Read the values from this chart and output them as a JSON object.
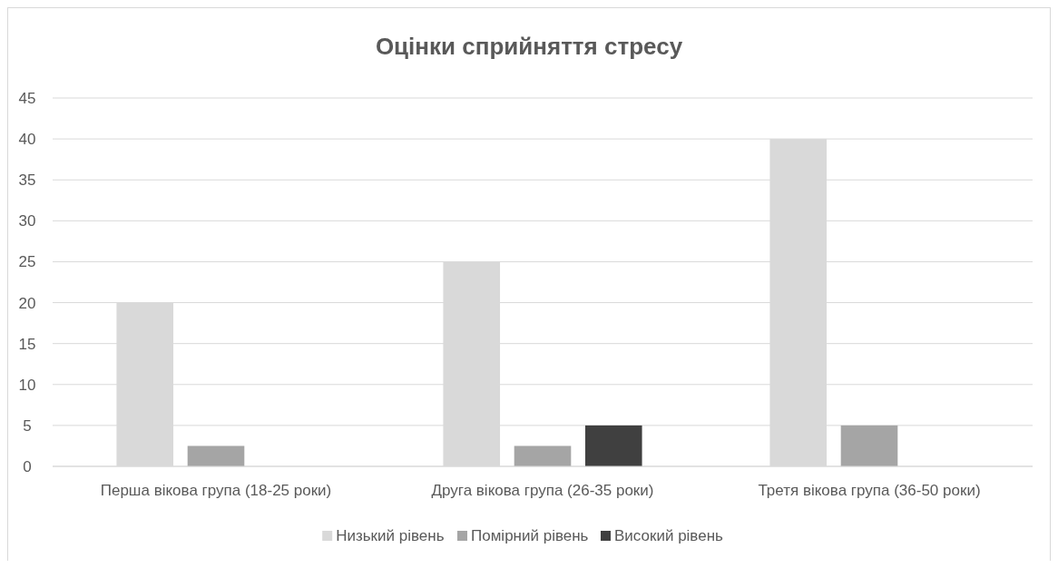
{
  "chart_data": {
    "type": "bar",
    "title": "Оцінки сприйняття стресу",
    "categories": [
      "Перша вікова група (18-25 роки)",
      "Друга вікова група (26-35 роки)",
      "Третя вікова група (36-50 роки)"
    ],
    "series": [
      {
        "name": "Низький рівень",
        "color": "#d9d9d9",
        "values": [
          20,
          25,
          40
        ]
      },
      {
        "name": "Помірний рівень",
        "color": "#a5a5a5",
        "values": [
          2.5,
          2.5,
          5
        ]
      },
      {
        "name": "Високий рівень",
        "color": "#404040",
        "values": [
          0,
          5,
          0
        ]
      }
    ],
    "ylim": [
      0,
      45
    ],
    "yticks": [
      0,
      5,
      10,
      15,
      20,
      25,
      30,
      35,
      40,
      45
    ],
    "grid": "y",
    "legend": "bottom"
  }
}
